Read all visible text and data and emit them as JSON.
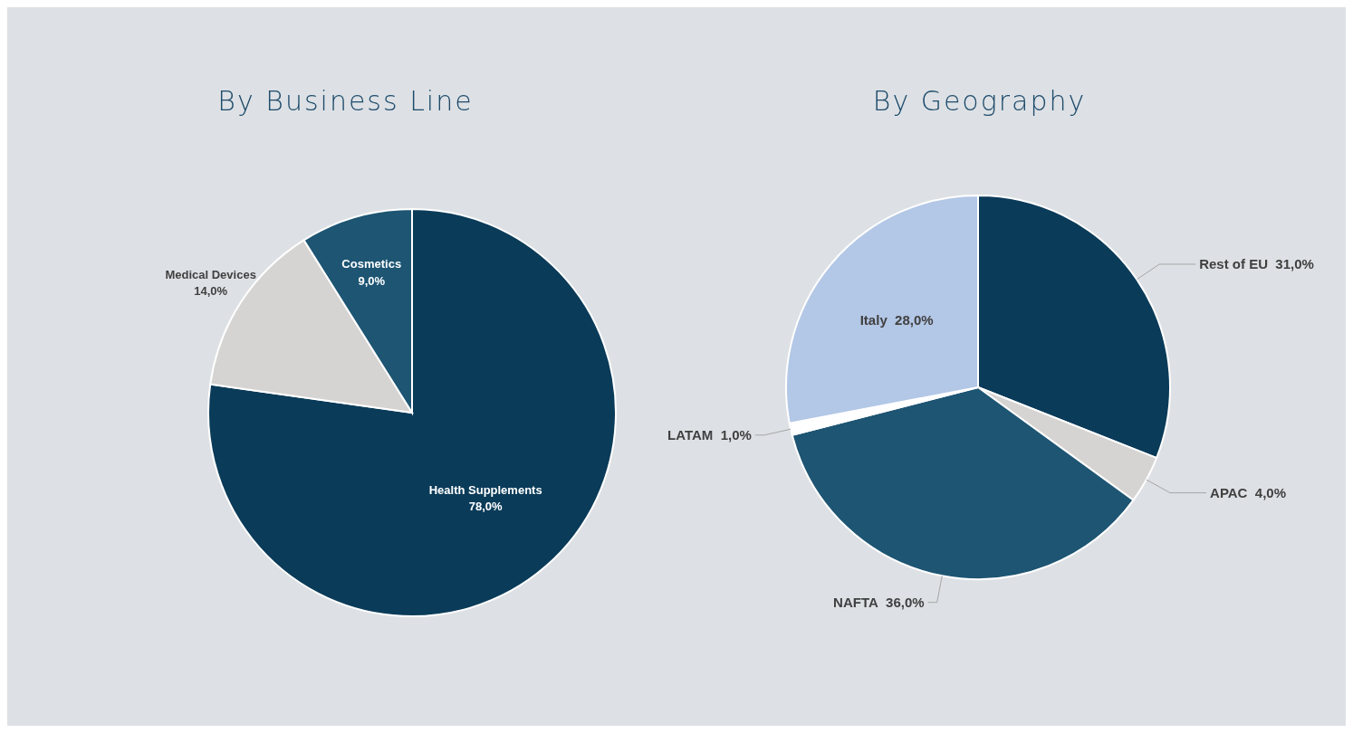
{
  "chart_data": [
    {
      "type": "pie",
      "title": "By Business Line",
      "categories": [
        "Health Supplements",
        "Medical Devices",
        "Cosmetics"
      ],
      "values": [
        78,
        14,
        9
      ],
      "value_labels": [
        "78,0%",
        "14,0%",
        "9,0%"
      ],
      "colors": [
        "#0a3b59",
        "#d6d4d3",
        "#1d5573"
      ]
    },
    {
      "type": "pie",
      "title": "By Geography",
      "categories": [
        "Rest of EU",
        "APAC",
        "NAFTA",
        "LATAM",
        "Italy"
      ],
      "values": [
        31,
        4,
        36,
        1,
        28
      ],
      "value_labels": [
        "31,0%",
        "4,0%",
        "36,0%",
        "1,0%",
        "28,0%"
      ],
      "colors": [
        "#0a3b59",
        "#d6d4d3",
        "#1d5573",
        "#ffffff",
        "#b3c7e6"
      ]
    }
  ]
}
